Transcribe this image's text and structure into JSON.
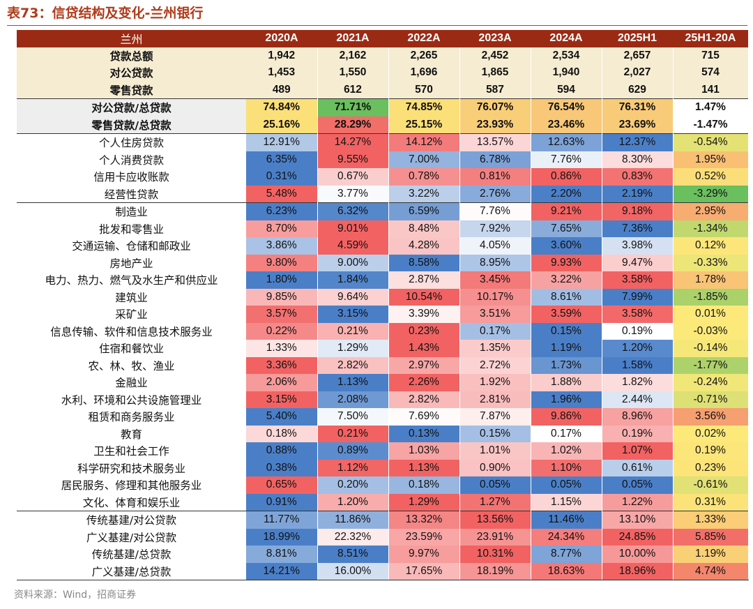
{
  "title": "表73：信贷结构及变化-兰州银行",
  "source": "资料来源：Wind，招商证券",
  "header": {
    "label": "兰州",
    "columns": [
      "2020A",
      "2021A",
      "2022A",
      "2023A",
      "2024A",
      "2025H1",
      "25H1-20A"
    ]
  },
  "colors": {
    "header_bg": "#9b2a14",
    "summary_bg": "#f6ecd2",
    "blue_scale_end": "#4a7fc8",
    "red_scale_end": "#f26262",
    "diff_green_end": "#6abf5e",
    "diff_yellow_mid": "#fce97a",
    "diff_red_end": "#f26262"
  },
  "rows": [
    {
      "label": "贷款总额",
      "values": [
        "1,942",
        "2,162",
        "2,265",
        "2,452",
        "2,534",
        "2,657",
        "715"
      ],
      "type": "summary"
    },
    {
      "label": "对公贷款",
      "values": [
        "1,453",
        "1,550",
        "1,696",
        "1,865",
        "1,940",
        "2,027",
        "574"
      ],
      "type": "summary"
    },
    {
      "label": "零售贷款",
      "values": [
        "489",
        "612",
        "570",
        "587",
        "594",
        "629",
        "141"
      ],
      "type": "summary"
    },
    {
      "label": "对公贷款/总贷款",
      "values": [
        "74.84%",
        "71.71%",
        "74.85%",
        "76.07%",
        "76.54%",
        "76.31%",
        "1.47%"
      ],
      "type": "ratio"
    },
    {
      "label": "零售贷款/总贷款",
      "values": [
        "25.16%",
        "28.29%",
        "25.15%",
        "23.93%",
        "23.46%",
        "23.69%",
        "-1.47%"
      ],
      "type": "ratio"
    },
    {
      "label": "个人住房贷款",
      "values": [
        "12.91%",
        "14.27%",
        "14.12%",
        "13.57%",
        "12.63%",
        "12.37%",
        "-0.54%"
      ],
      "type": "pct"
    },
    {
      "label": "个人消费贷款",
      "values": [
        "6.35%",
        "9.55%",
        "7.00%",
        "6.78%",
        "7.76%",
        "8.30%",
        "1.95%"
      ],
      "type": "pct"
    },
    {
      "label": "信用卡应收账款",
      "values": [
        "0.31%",
        "0.67%",
        "0.78%",
        "0.81%",
        "0.86%",
        "0.83%",
        "0.52%"
      ],
      "type": "pct"
    },
    {
      "label": "经营性贷款",
      "values": [
        "5.48%",
        "3.77%",
        "3.22%",
        "2.76%",
        "2.20%",
        "2.19%",
        "-3.29%"
      ],
      "type": "pct"
    },
    {
      "label": "制造业",
      "values": [
        "6.23%",
        "6.32%",
        "6.59%",
        "7.76%",
        "9.21%",
        "9.18%",
        "2.95%"
      ],
      "type": "pct"
    },
    {
      "label": "批发和零售业",
      "values": [
        "8.70%",
        "9.01%",
        "8.48%",
        "7.92%",
        "7.65%",
        "7.36%",
        "-1.34%"
      ],
      "type": "pct"
    },
    {
      "label": "交通运输、仓储和邮政业",
      "values": [
        "3.86%",
        "4.59%",
        "4.28%",
        "4.05%",
        "3.60%",
        "3.98%",
        "0.12%"
      ],
      "type": "pct"
    },
    {
      "label": "房地产业",
      "values": [
        "9.80%",
        "9.00%",
        "8.58%",
        "8.95%",
        "9.93%",
        "9.47%",
        "-0.33%"
      ],
      "type": "pct"
    },
    {
      "label": "电力、热力、燃气及水生产和供应业",
      "values": [
        "1.80%",
        "1.84%",
        "2.87%",
        "3.45%",
        "3.22%",
        "3.58%",
        "1.78%"
      ],
      "type": "pct"
    },
    {
      "label": "建筑业",
      "values": [
        "9.85%",
        "9.64%",
        "10.54%",
        "10.17%",
        "8.61%",
        "7.99%",
        "-1.85%"
      ],
      "type": "pct"
    },
    {
      "label": "采矿业",
      "values": [
        "3.57%",
        "3.15%",
        "3.39%",
        "3.51%",
        "3.59%",
        "3.58%",
        "0.01%"
      ],
      "type": "pct"
    },
    {
      "label": "信息传输、软件和信息技术服务业",
      "values": [
        "0.22%",
        "0.21%",
        "0.23%",
        "0.17%",
        "0.15%",
        "0.19%",
        "-0.03%"
      ],
      "type": "pct"
    },
    {
      "label": "住宿和餐饮业",
      "values": [
        "1.33%",
        "1.29%",
        "1.43%",
        "1.35%",
        "1.19%",
        "1.20%",
        "-0.14%"
      ],
      "type": "pct"
    },
    {
      "label": "农、林、牧、渔业",
      "values": [
        "3.36%",
        "2.82%",
        "2.97%",
        "2.72%",
        "1.73%",
        "1.58%",
        "-1.77%"
      ],
      "type": "pct"
    },
    {
      "label": "金融业",
      "values": [
        "2.06%",
        "1.13%",
        "2.26%",
        "1.92%",
        "1.88%",
        "1.82%",
        "-0.24%"
      ],
      "type": "pct"
    },
    {
      "label": "水利、环境和公共设施管理业",
      "values": [
        "3.15%",
        "2.08%",
        "2.82%",
        "2.81%",
        "1.96%",
        "2.44%",
        "-0.71%"
      ],
      "type": "pct"
    },
    {
      "label": "租赁和商务服务业",
      "values": [
        "5.40%",
        "7.50%",
        "7.69%",
        "7.87%",
        "9.86%",
        "8.96%",
        "3.56%"
      ],
      "type": "pct"
    },
    {
      "label": "教育",
      "values": [
        "0.18%",
        "0.21%",
        "0.13%",
        "0.15%",
        "0.17%",
        "0.19%",
        "0.02%"
      ],
      "type": "pct"
    },
    {
      "label": "卫生和社会工作",
      "values": [
        "0.88%",
        "0.89%",
        "1.03%",
        "1.01%",
        "1.02%",
        "1.07%",
        "0.19%"
      ],
      "type": "pct"
    },
    {
      "label": "科学研究和技术服务业",
      "values": [
        "0.38%",
        "1.12%",
        "1.13%",
        "0.90%",
        "1.10%",
        "0.61%",
        "0.23%"
      ],
      "type": "pct"
    },
    {
      "label": "居民服务、修理和其他服务业",
      "values": [
        "0.65%",
        "0.20%",
        "0.18%",
        "0.05%",
        "0.05%",
        "0.05%",
        "-0.61%"
      ],
      "type": "pct"
    },
    {
      "label": "文化、体育和娱乐业",
      "values": [
        "0.91%",
        "1.20%",
        "1.29%",
        "1.27%",
        "1.15%",
        "1.22%",
        "0.31%"
      ],
      "type": "pct"
    },
    {
      "label": "传统基建/对公贷款",
      "values": [
        "11.77%",
        "11.86%",
        "13.32%",
        "13.56%",
        "11.46%",
        "13.10%",
        "1.33%"
      ],
      "type": "pct"
    },
    {
      "label": "广义基建/对公贷款",
      "values": [
        "18.99%",
        "22.32%",
        "23.59%",
        "23.91%",
        "24.34%",
        "24.85%",
        "5.85%"
      ],
      "type": "pct"
    },
    {
      "label": "传统基建/总贷款",
      "values": [
        "8.81%",
        "8.51%",
        "9.97%",
        "10.31%",
        "8.77%",
        "10.00%",
        "1.19%"
      ],
      "type": "pct"
    },
    {
      "label": "广义基建/总贷款",
      "values": [
        "14.21%",
        "16.00%",
        "17.65%",
        "18.19%",
        "18.63%",
        "18.96%",
        "4.74%"
      ],
      "type": "pct"
    }
  ]
}
